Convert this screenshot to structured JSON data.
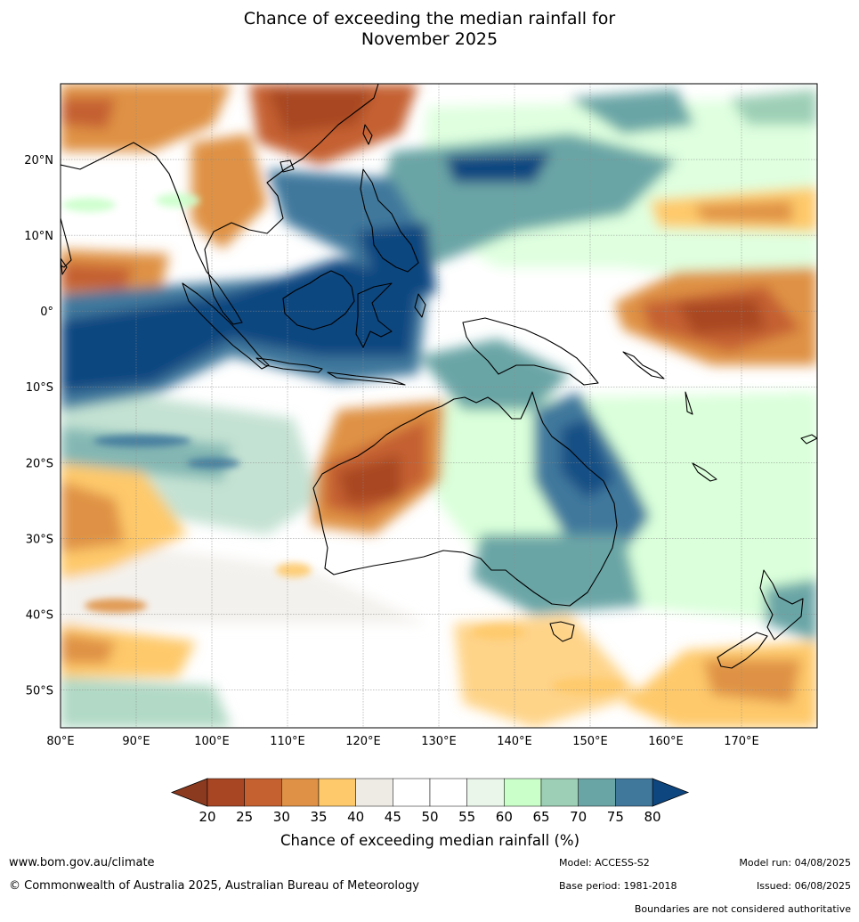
{
  "title": {
    "line1": "Chance of exceeding the median rainfall for",
    "line2": "November 2025"
  },
  "map": {
    "lon_range": [
      80,
      180
    ],
    "lat_range": [
      -55,
      30
    ],
    "lat_labels": [
      {
        "lat": 20,
        "label": "20°N"
      },
      {
        "lat": 10,
        "label": "10°N"
      },
      {
        "lat": 0,
        "label": "0°"
      },
      {
        "lat": -10,
        "label": "10°S"
      },
      {
        "lat": -20,
        "label": "20°S"
      },
      {
        "lat": -30,
        "label": "30°S"
      },
      {
        "lat": -40,
        "label": "40°S"
      },
      {
        "lat": -50,
        "label": "50°S"
      }
    ],
    "lon_labels": [
      {
        "lon": 80,
        "label": "80°E"
      },
      {
        "lon": 90,
        "label": "90°E"
      },
      {
        "lon": 100,
        "label": "100°E"
      },
      {
        "lon": 110,
        "label": "110°E"
      },
      {
        "lon": 120,
        "label": "120°E"
      },
      {
        "lon": 130,
        "label": "130°E"
      },
      {
        "lon": 140,
        "label": "140°E"
      },
      {
        "lon": 150,
        "label": "150°E"
      },
      {
        "lon": 160,
        "label": "160°E"
      },
      {
        "lon": 170,
        "label": "170°E"
      }
    ]
  },
  "colorbar": {
    "under_color": "#8c3a1f",
    "over_color": "#0e4680",
    "colors": [
      "#a84624",
      "#c56131",
      "#df9245",
      "#fec96b",
      "#eeebe5",
      "#ffffff",
      "#ffffff",
      "#eaf6ea",
      "#caffca",
      "#9dcfb6",
      "#6aa5a6",
      "#40789c"
    ],
    "ticks": [
      "20",
      "25",
      "30",
      "35",
      "40",
      "45",
      "50",
      "55",
      "60",
      "65",
      "70",
      "75",
      "80"
    ],
    "label": "Chance of exceeding median rainfall (%)"
  },
  "footer": {
    "url": "www.bom.gov.au/climate",
    "copyright": "© Commonwealth of Australia 2025, Australian Bureau of Meteorology",
    "model": "Model: ACCESS-S2",
    "base_period": "Base period: 1981-2018",
    "model_run": "Model run: 04/08/2025",
    "issued": "Issued: 06/08/2025",
    "boundaries": "Boundaries are not considered authoritative"
  }
}
